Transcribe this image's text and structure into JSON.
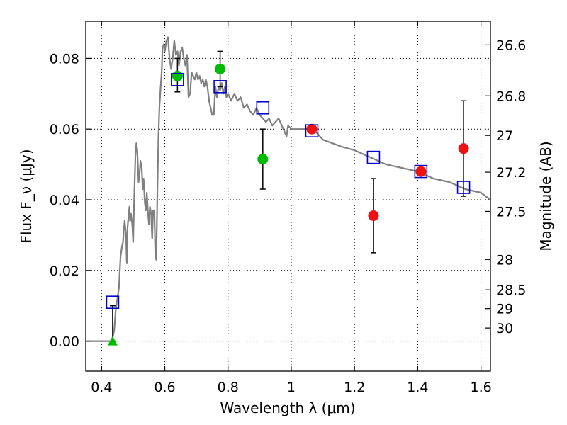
{
  "chart_data": {
    "type": "scatter",
    "xlabel": "Wavelength λ (μm)",
    "ylabel": "Flux F_ν (μJy)",
    "ylabel_right": "Magnitude (AB)",
    "xlim": [
      0.35,
      1.63
    ],
    "ylim": [
      -0.0085,
      0.0905
    ],
    "grid": true,
    "x_ticks": [
      0.4,
      0.6,
      0.8,
      1.0,
      1.2,
      1.4,
      1.6
    ],
    "x_tick_labels": [
      "0.4",
      "0.6",
      "0.8",
      "1",
      "1.2",
      "1.4",
      "1.6"
    ],
    "y_ticks": [
      0.0,
      0.02,
      0.04,
      0.06,
      0.08
    ],
    "y_tick_labels": [
      "0.00",
      "0.02",
      "0.04",
      "0.06",
      "0.08"
    ],
    "right_ticks": [
      {
        "label": "26.6",
        "flux": 0.0838
      },
      {
        "label": "26.8",
        "flux": 0.0694
      },
      {
        "label": "27",
        "flux": 0.0582
      },
      {
        "label": "27.2",
        "flux": 0.0478
      },
      {
        "label": "27.5",
        "flux": 0.0367
      },
      {
        "label": "28",
        "flux": 0.0231
      },
      {
        "label": "28.5",
        "flux": 0.0145
      },
      {
        "label": "29",
        "flux": 0.0092
      },
      {
        "label": "30",
        "flux": 0.0037
      }
    ],
    "model_spectrum": {
      "color": "#808080",
      "x": [
        0.35,
        0.42,
        0.43,
        0.435,
        0.44,
        0.445,
        0.45,
        0.455,
        0.46,
        0.465,
        0.468,
        0.47,
        0.473,
        0.477,
        0.48,
        0.482,
        0.485,
        0.488,
        0.49,
        0.493,
        0.497,
        0.5,
        0.503,
        0.507,
        0.51,
        0.513,
        0.517,
        0.52,
        0.523,
        0.527,
        0.53,
        0.533,
        0.537,
        0.54,
        0.543,
        0.547,
        0.55,
        0.553,
        0.557,
        0.56,
        0.563,
        0.567,
        0.57,
        0.573,
        0.577,
        0.58,
        0.583,
        0.587,
        0.59,
        0.593,
        0.597,
        0.6,
        0.605,
        0.61,
        0.615,
        0.62,
        0.625,
        0.63,
        0.635,
        0.64,
        0.645,
        0.65,
        0.655,
        0.66,
        0.665,
        0.67,
        0.675,
        0.68,
        0.685,
        0.69,
        0.695,
        0.7,
        0.705,
        0.71,
        0.715,
        0.72,
        0.725,
        0.73,
        0.735,
        0.74,
        0.745,
        0.75,
        0.755,
        0.76,
        0.765,
        0.77,
        0.775,
        0.78,
        0.785,
        0.79,
        0.795,
        0.8,
        0.81,
        0.82,
        0.83,
        0.84,
        0.85,
        0.86,
        0.87,
        0.88,
        0.89,
        0.9,
        0.91,
        0.92,
        0.93,
        0.94,
        0.95,
        0.96,
        0.97,
        0.98,
        0.985,
        0.99,
        1.0,
        1.02,
        1.04,
        1.06,
        1.08,
        1.1,
        1.13,
        1.16,
        1.2,
        1.25,
        1.3,
        1.35,
        1.4,
        1.45,
        1.5,
        1.55,
        1.6,
        1.63
      ],
      "y": [
        0.0,
        0.0,
        0.0,
        0.001,
        0.003,
        0.009,
        0.012,
        0.015,
        0.024,
        0.027,
        0.028,
        0.031,
        0.034,
        0.03,
        0.022,
        0.032,
        0.035,
        0.038,
        0.034,
        0.036,
        0.033,
        0.028,
        0.04,
        0.052,
        0.056,
        0.054,
        0.045,
        0.047,
        0.051,
        0.049,
        0.043,
        0.046,
        0.039,
        0.037,
        0.042,
        0.036,
        0.033,
        0.038,
        0.036,
        0.029,
        0.037,
        0.037,
        0.025,
        0.023,
        0.045,
        0.058,
        0.066,
        0.072,
        0.076,
        0.083,
        0.084,
        0.082,
        0.085,
        0.086,
        0.08,
        0.077,
        0.08,
        0.085,
        0.081,
        0.082,
        0.078,
        0.082,
        0.083,
        0.08,
        0.078,
        0.081,
        0.069,
        0.07,
        0.076,
        0.075,
        0.074,
        0.076,
        0.074,
        0.075,
        0.073,
        0.074,
        0.072,
        0.074,
        0.072,
        0.068,
        0.066,
        0.064,
        0.064,
        0.072,
        0.069,
        0.072,
        0.071,
        0.073,
        0.07,
        0.072,
        0.069,
        0.07,
        0.068,
        0.07,
        0.068,
        0.069,
        0.066,
        0.067,
        0.065,
        0.064,
        0.066,
        0.064,
        0.063,
        0.062,
        0.063,
        0.061,
        0.062,
        0.063,
        0.061,
        0.059,
        0.058,
        0.061,
        0.06,
        0.06,
        0.06,
        0.06,
        0.059,
        0.057,
        0.056,
        0.055,
        0.054,
        0.052,
        0.05,
        0.049,
        0.048,
        0.046,
        0.045,
        0.043,
        0.042,
        0.04
      ]
    },
    "model_photometry": {
      "marker": "open-square",
      "color": "#0000cc",
      "x": [
        0.435,
        0.64,
        0.775,
        0.91,
        1.065,
        1.26,
        1.41,
        1.545
      ],
      "y": [
        0.011,
        0.074,
        0.072,
        0.066,
        0.0595,
        0.052,
        0.048,
        0.0435
      ]
    },
    "observed_optical": {
      "marker": "filled-circle",
      "color": "#00bb00",
      "x": [
        0.64,
        0.775,
        0.91
      ],
      "y": [
        0.075,
        0.077,
        0.0515
      ],
      "yerr_low": [
        0.0045,
        0.005,
        0.0085
      ],
      "yerr_high": [
        0.005,
        0.005,
        0.0085
      ]
    },
    "observed_nir": {
      "marker": "filled-circle",
      "color": "#ee1111",
      "x": [
        1.065,
        1.26,
        1.41,
        1.545
      ],
      "y": [
        0.06,
        0.0355,
        0.048,
        0.0545
      ],
      "yerr_low": [
        0.0,
        0.0105,
        0.0,
        0.0135
      ],
      "yerr_high": [
        0.0,
        0.0105,
        0.0,
        0.0135
      ]
    },
    "upper_limit": {
      "marker": "triangle",
      "color": "#00bb00",
      "x": 0.435,
      "y": 0.0,
      "err_top": 0.01
    }
  }
}
